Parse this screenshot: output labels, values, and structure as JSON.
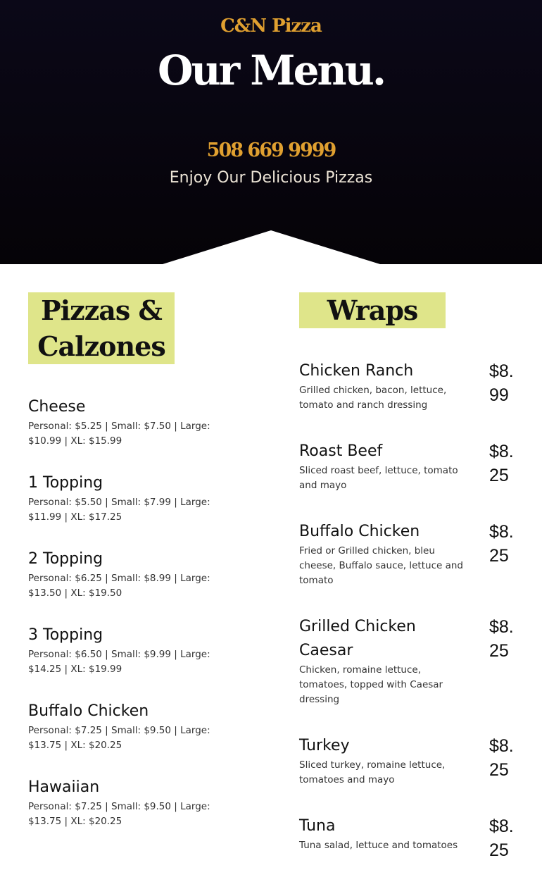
{
  "header": {
    "brand": "C&N Pizza",
    "title": "Our Menu.",
    "phone": "508 669 9999",
    "tagline": "Enjoy Our Delicious Pizzas"
  },
  "pizzas": {
    "heading": "Pizzas & Calzones",
    "items": [
      {
        "name": "Cheese",
        "prices": "Personal: $5.25 | Small: $7.50 | Large: $10.99 | XL: $15.99"
      },
      {
        "name": "1 Topping",
        "prices": "Personal: $5.50 | Small: $7.99 | Large: $11.99 | XL: $17.25"
      },
      {
        "name": "2 Topping",
        "prices": "Personal: $6.25 | Small: $8.99 | Large: $13.50 | XL: $19.50"
      },
      {
        "name": "3 Topping",
        "prices": "Personal: $6.50 | Small: $9.99 | Large: $14.25 | XL: $19.99"
      },
      {
        "name": "Buffalo Chicken",
        "prices": "Personal: $7.25 | Small: $9.50 | Large: $13.75 | XL: $20.25"
      },
      {
        "name": "Hawaiian",
        "prices": "Personal: $7.25 | Small: $9.50 | Large: $13.75 | XL: $20.25"
      }
    ]
  },
  "wraps": {
    "heading": "Wraps",
    "items": [
      {
        "name": "Chicken Ranch",
        "desc": "Grilled chicken, bacon, lettuce, tomato and ranch dressing",
        "price": "$8.99"
      },
      {
        "name": "Roast Beef",
        "desc": "Sliced roast beef, lettuce, tomato and mayo",
        "price": "$8.25"
      },
      {
        "name": "Buffalo Chicken",
        "desc": "Fried or Grilled chicken, bleu cheese, Buffalo sauce, lettuce and tomato",
        "price": "$8.25"
      },
      {
        "name": "Grilled Chicken Caesar",
        "desc": "Chicken, romaine lettuce, tomatoes, topped with Caesar dressing",
        "price": "$8.25"
      },
      {
        "name": "Turkey",
        "desc": "Sliced turkey, romaine lettuce, tomatoes and mayo",
        "price": "$8.25"
      },
      {
        "name": "Tuna",
        "desc": "Tuna salad, lettuce and tomatoes",
        "price": "$8.25"
      }
    ]
  },
  "colors": {
    "accent": "#e0a030",
    "highlight": "#dfe58a",
    "hero_bg": "#07050f"
  }
}
